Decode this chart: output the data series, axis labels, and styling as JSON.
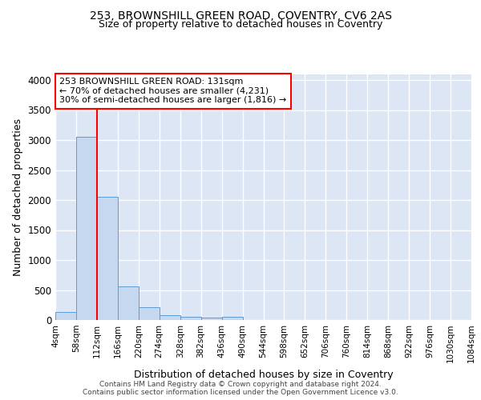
{
  "title1": "253, BROWNSHILL GREEN ROAD, COVENTRY, CV6 2AS",
  "title2": "Size of property relative to detached houses in Coventry",
  "xlabel": "Distribution of detached houses by size in Coventry",
  "ylabel": "Number of detached properties",
  "bin_labels": [
    "4sqm",
    "58sqm",
    "112sqm",
    "166sqm",
    "220sqm",
    "274sqm",
    "328sqm",
    "382sqm",
    "436sqm",
    "490sqm",
    "544sqm",
    "598sqm",
    "652sqm",
    "706sqm",
    "760sqm",
    "814sqm",
    "868sqm",
    "922sqm",
    "976sqm",
    "1030sqm",
    "1084sqm"
  ],
  "bar_values": [
    140,
    3050,
    2060,
    555,
    210,
    75,
    55,
    45,
    55,
    0,
    0,
    0,
    0,
    0,
    0,
    0,
    0,
    0,
    0,
    0
  ],
  "bar_color": "#c5d8f0",
  "bar_edge_color": "#5b9bd5",
  "background_color": "#dce6f5",
  "grid_color": "#ffffff",
  "annotation_text": "253 BROWNSHILL GREEN ROAD: 131sqm\n← 70% of detached houses are smaller (4,231)\n30% of semi-detached houses are larger (1,816) →",
  "vline_x": 112,
  "ylim": [
    0,
    4100
  ],
  "yticks": [
    0,
    500,
    1000,
    1500,
    2000,
    2500,
    3000,
    3500,
    4000
  ],
  "footer_text": "Contains HM Land Registry data © Crown copyright and database right 2024.\nContains public sector information licensed under the Open Government Licence v3.0.",
  "bin_edges": [
    4,
    58,
    112,
    166,
    220,
    274,
    328,
    382,
    436,
    490,
    544,
    598,
    652,
    706,
    760,
    814,
    868,
    922,
    976,
    1030,
    1084
  ]
}
